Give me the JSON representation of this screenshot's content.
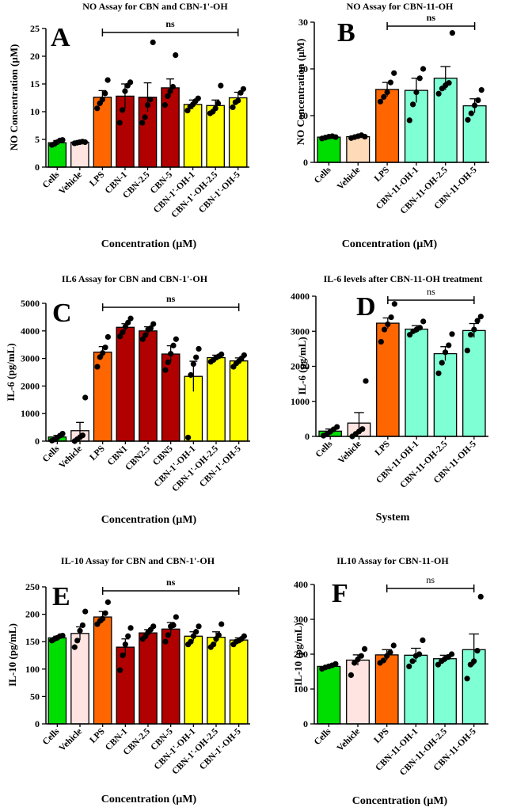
{
  "chart_data": [
    {
      "type": "bar",
      "panel": "A",
      "title": "NO Assay for CBN and CBN-1'-OH",
      "ylabel": "NO Concentration (µM)",
      "xlabel": "Concentration (µM)",
      "ylim": [
        0,
        25
      ],
      "yticks": [
        0,
        5,
        10,
        15,
        20,
        25
      ],
      "categories": [
        "Cells",
        "Vehicle",
        "LPS",
        "CBN-1",
        "CBN-2.5",
        "CBN-5",
        "CBN-1'-OH-1",
        "CBN-1'-OH-2.5",
        "CBN-1'-OH-5"
      ],
      "values": [
        4.4,
        4.5,
        12.6,
        12.8,
        12.6,
        14.3,
        11.3,
        11.1,
        12.5
      ],
      "errors": [
        0.4,
        0.2,
        1.2,
        2.2,
        2.6,
        1.6,
        0.8,
        1.0,
        1.0
      ],
      "points": [
        [
          4.0,
          4.2,
          4.5,
          4.8,
          4.9
        ],
        [
          4.3,
          4.4,
          4.5,
          4.6,
          4.5
        ],
        [
          10.6,
          11.5,
          12.2,
          13.3,
          15.7
        ],
        [
          8.0,
          10.3,
          13.7,
          14.7,
          15.3
        ],
        [
          8.0,
          9.0,
          11.2,
          12.2,
          22.5
        ],
        [
          11.2,
          12.8,
          13.7,
          14.5,
          20.2
        ],
        [
          10.2,
          10.9,
          11.3,
          11.9,
          12.4
        ],
        [
          9.7,
          10.0,
          10.6,
          11.5,
          14.7
        ],
        [
          10.8,
          11.7,
          12.0,
          13.4,
          14.1
        ]
      ],
      "colors": [
        "#00dd00",
        "#ffe4e1",
        "#ff6600",
        "#b00000",
        "#b00000",
        "#b00000",
        "#ffff00",
        "#ffff00",
        "#ffff00"
      ],
      "significance": {
        "label": "ns",
        "from": "LPS",
        "to": "CBN-1'-OH-5"
      }
    },
    {
      "type": "bar",
      "panel": "B",
      "title": "NO Assay for CBN-11-OH",
      "ylabel": "NO Concentration (µM)",
      "xlabel": "Concentration (µM)",
      "ylim": [
        0,
        30
      ],
      "yticks": [
        0,
        10,
        20,
        30
      ],
      "categories": [
        "Cells",
        "Vehicle",
        "LPS",
        "CBN-11-OH-1",
        "CBN-11-OH-2.5",
        "CBN-11-OH-5"
      ],
      "values": [
        5.4,
        5.5,
        15.6,
        15.4,
        18.0,
        12.1
      ],
      "errors": [
        0.3,
        0.3,
        1.5,
        2.6,
        2.5,
        1.5
      ],
      "points": [
        [
          5.1,
          5.3,
          5.5,
          5.6,
          5.4
        ],
        [
          5.2,
          5.4,
          5.6,
          5.8,
          5.5
        ],
        [
          13.0,
          14.0,
          15.0,
          17.1,
          19.1
        ],
        [
          9.0,
          12.4,
          15.0,
          18.0,
          20.0
        ],
        [
          14.7,
          15.8,
          16.5,
          17.0,
          27.7
        ],
        [
          9.1,
          10.5,
          12.2,
          13.3,
          15.5
        ]
      ],
      "colors": [
        "#00dd00",
        "#ffdab9",
        "#ff6600",
        "#7fffd4",
        "#7fffd4",
        "#7fffd4"
      ],
      "significance": {
        "label": "ns",
        "from": "LPS",
        "to": "CBN-11-OH-5"
      }
    },
    {
      "type": "bar",
      "panel": "C",
      "title": "IL6 Assay for CBN and CBN-1'-OH",
      "ylabel": "IL-6 (pg/mL)",
      "xlabel": "Concentration (µM)",
      "ylim": [
        0,
        5000
      ],
      "yticks": [
        0,
        1000,
        2000,
        3000,
        4000,
        5000
      ],
      "categories": [
        "Cells",
        "Vehicle",
        "LPS",
        "CBN1",
        "CBN2.5",
        "CBN5",
        "CBN-1'-OH-1",
        "CBN-1'-OH-2.5",
        "CBN-1'-OH-5"
      ],
      "values": [
        150,
        380,
        3230,
        4130,
        4000,
        3160,
        2350,
        3030,
        2910
      ],
      "errors": [
        60,
        300,
        200,
        130,
        150,
        300,
        550,
        90,
        110
      ],
      "points": [
        [
          20,
          60,
          130,
          200,
          270
        ],
        [
          0,
          70,
          140,
          210,
          1580
        ],
        [
          2700,
          3050,
          3200,
          3400,
          3780
        ],
        [
          3800,
          3950,
          4150,
          4300,
          4450
        ],
        [
          3700,
          3850,
          4050,
          4100,
          4250
        ],
        [
          2580,
          2860,
          3170,
          3470,
          3700
        ],
        [
          130,
          2400,
          2800,
          3040,
          3350
        ],
        [
          2880,
          2950,
          3030,
          3080,
          3150
        ],
        [
          2700,
          2820,
          2900,
          3000,
          3120
        ]
      ],
      "colors": [
        "#00dd00",
        "#ffe4e1",
        "#ff6600",
        "#b00000",
        "#b00000",
        "#b00000",
        "#ffff00",
        "#ffff00",
        "#ffff00"
      ],
      "significance": {
        "label": "ns",
        "from": "LPS",
        "to": "CBN-1'-OH-5"
      }
    },
    {
      "type": "bar",
      "panel": "D",
      "title": "IL-6 levels after CBN-11-OH treatment",
      "ylabel": "IL-6 (pg/mL)",
      "xlabel": "System",
      "ylim": [
        0,
        4000
      ],
      "yticks": [
        0,
        1000,
        2000,
        3000,
        4000
      ],
      "categories": [
        "Cells",
        "Vehicle",
        "LPS",
        "CBN-11-OH-1",
        "CBN-11-OH-2.5",
        "CBN-11-OH-5"
      ],
      "values": [
        150,
        380,
        3230,
        3060,
        2360,
        3020
      ],
      "errors": [
        60,
        300,
        150,
        100,
        200,
        200
      ],
      "points": [
        [
          20,
          60,
          130,
          200,
          270
        ],
        [
          0,
          70,
          140,
          210,
          1580
        ],
        [
          2700,
          3050,
          3200,
          3400,
          3780
        ],
        [
          2900,
          3000,
          3050,
          3100,
          3280
        ],
        [
          1800,
          2100,
          2400,
          2600,
          2920
        ],
        [
          2450,
          2900,
          3050,
          3300,
          3420
        ]
      ],
      "colors": [
        "#00dd00",
        "#ffe4e1",
        "#ff6600",
        "#7fffd4",
        "#7fffd4",
        "#7fffd4"
      ],
      "significance": {
        "label": "ns",
        "from": "LPS",
        "to": "CBN-11-OH-5"
      }
    },
    {
      "type": "bar",
      "panel": "E",
      "title": "IL-10 Assay for CBN and CBN-1'-OH",
      "ylabel": "IL-10 (pg/mL)",
      "xlabel": "Concentration (µM)",
      "ylim": [
        0,
        250
      ],
      "yticks": [
        0,
        50,
        100,
        150,
        200,
        250
      ],
      "categories": [
        "Cells",
        "Vehicle",
        "LPS",
        "CBN-1",
        "CBN-2.5",
        "CBN-5",
        "CBN-1'-OH-1",
        "CBN-1'-OH-2.5",
        "CBN-1'-OH-5"
      ],
      "values": [
        157,
        165,
        195,
        140,
        166,
        173,
        160,
        158,
        153
      ],
      "errors": [
        3,
        12,
        10,
        15,
        6,
        12,
        8,
        10,
        4
      ],
      "points": [
        [
          152,
          155,
          157,
          160,
          161
        ],
        [
          140,
          152,
          170,
          180,
          205
        ],
        [
          182,
          188,
          192,
          202,
          222
        ],
        [
          98,
          125,
          145,
          160,
          175
        ],
        [
          155,
          160,
          167,
          172,
          178
        ],
        [
          150,
          162,
          178,
          180,
          195
        ],
        [
          145,
          150,
          160,
          168,
          178
        ],
        [
          140,
          145,
          155,
          162,
          182
        ],
        [
          145,
          150,
          152,
          155,
          160
        ]
      ],
      "colors": [
        "#00dd00",
        "#ffe4e1",
        "#ff6600",
        "#b00000",
        "#b00000",
        "#b00000",
        "#ffff00",
        "#ffff00",
        "#ffff00"
      ],
      "significance": {
        "label": "ns",
        "from": "LPS",
        "to": "CBN-1'-OH-5"
      }
    },
    {
      "type": "bar",
      "panel": "F",
      "title": "IL10 Assay for CBN-11-OH",
      "ylabel": "IL-10 (pg/mL)",
      "xlabel": "Concentration (µM)",
      "ylim": [
        0,
        400
      ],
      "yticks": [
        0,
        100,
        200,
        300,
        400
      ],
      "categories": [
        "Cells",
        "Vehicle",
        "LPS",
        "CBN-11-OH-1",
        "CBN-11-OH-2.5",
        "CBN-11-OH-5"
      ],
      "values": [
        165,
        183,
        198,
        197,
        187,
        213
      ],
      "errors": [
        3,
        15,
        15,
        20,
        10,
        45
      ],
      "points": [
        [
          158,
          162,
          165,
          168,
          172
        ],
        [
          140,
          175,
          185,
          195,
          215
        ],
        [
          175,
          182,
          195,
          205,
          225
        ],
        [
          165,
          180,
          195,
          200,
          240
        ],
        [
          170,
          180,
          187,
          192,
          200
        ],
        [
          130,
          170,
          180,
          210,
          365
        ]
      ],
      "colors": [
        "#00dd00",
        "#ffe4e1",
        "#ff6600",
        "#7fffd4",
        "#7fffd4",
        "#7fffd4"
      ],
      "significance": {
        "label": "ns",
        "from": "LPS",
        "to": "CBN-11-OH-5"
      }
    }
  ]
}
